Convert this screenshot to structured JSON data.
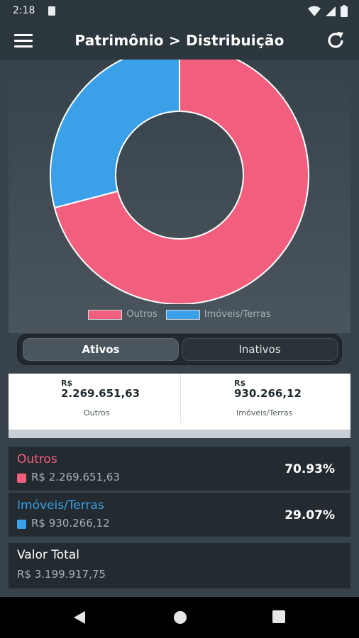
{
  "status_bar": {
    "time": "2:18"
  },
  "app_bar": {
    "title": "Patrimônio > Distribuição"
  },
  "chart_data": {
    "type": "pie",
    "categories": [
      "Outros",
      "Imóveis/Terras"
    ],
    "values": [
      2269651.63,
      930266.12
    ],
    "percent": [
      70.93,
      29.07
    ],
    "colors": [
      "#f25f7e",
      "#3aa0e8"
    ],
    "legend_position": "bottom"
  },
  "legend": [
    {
      "label": "Outros",
      "color": "#f25f7e"
    },
    {
      "label": "Imóveis/Terras",
      "color": "#3aa0e8"
    }
  ],
  "tabs": [
    {
      "label": "Ativos",
      "active": true
    },
    {
      "label": "Inativos",
      "active": false
    }
  ],
  "summary": [
    {
      "currency": "R$",
      "value": "2.269.651,63",
      "label": "Outros"
    },
    {
      "currency": "R$",
      "value": "930.266,12",
      "label": "Imóveis/Terras"
    }
  ],
  "categories": [
    {
      "name": "Outros",
      "amount": "R$ 2.269.651,63",
      "percent": "70.93%",
      "color": "#f25f7e"
    },
    {
      "name": "Imóveis/Terras",
      "amount": "R$ 930.266,12",
      "percent": "29.07%",
      "color": "#3aa0e8"
    }
  ],
  "total": {
    "label": "Valor Total",
    "value": "R$ 3.199.917,75"
  },
  "colors": {
    "background": "#37424a",
    "app_bar": "#2c363d",
    "card": "#232b30"
  }
}
